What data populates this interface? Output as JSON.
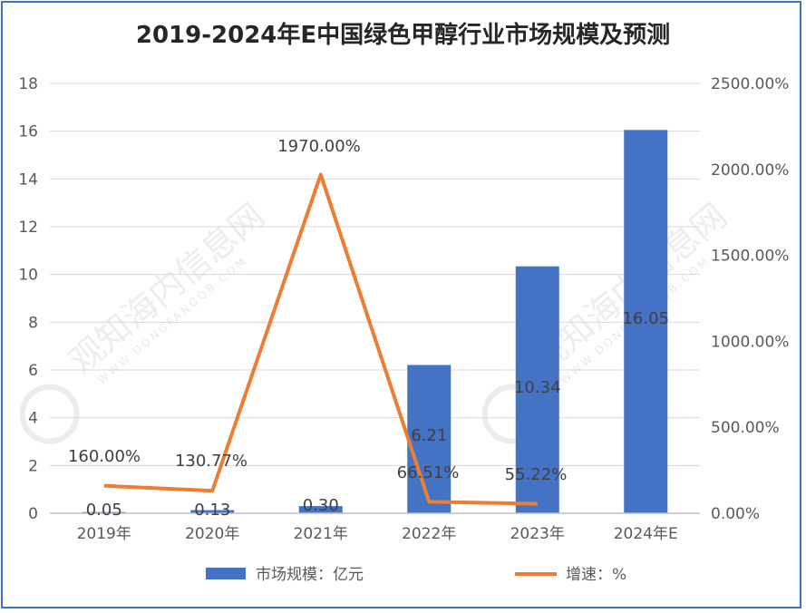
{
  "chart_data": {
    "type": "bar",
    "title": "2019-2024年E中国绿色甲醇行业市场规模及预测",
    "categories": [
      "2019年",
      "2020年",
      "2021年",
      "2022年",
      "2023年",
      "2024年E"
    ],
    "series": [
      {
        "name": "市场规模：亿元",
        "type": "bar",
        "axis": "left",
        "color": "#4472c4",
        "values": [
          0.05,
          0.13,
          0.3,
          6.21,
          10.34,
          16.05
        ],
        "labels": [
          "0.05",
          "0.13",
          "0.30",
          "6.21",
          "10.34",
          "16.05"
        ]
      },
      {
        "name": "增速：%",
        "type": "line",
        "axis": "right",
        "color": "#ed7d31",
        "values": [
          160.0,
          130.77,
          1970.0,
          66.51,
          55.22,
          null
        ],
        "labels": [
          "160.00%",
          "130.77%",
          "1970.00%",
          "66.51%",
          "55.22%",
          ""
        ]
      }
    ],
    "y_left": {
      "min": 0,
      "max": 18,
      "ticks": [
        "0",
        "2",
        "4",
        "6",
        "8",
        "10",
        "12",
        "14",
        "16",
        "18"
      ]
    },
    "y_right": {
      "min": 0,
      "max": 2500,
      "ticks": [
        "0.00%",
        "500.00%",
        "1000.00%",
        "1500.00%",
        "2000.00%",
        "2500.00%"
      ]
    },
    "grid": true,
    "legend": "bottom"
  },
  "watermark": {
    "text": "观知海内信息网",
    "sub": "WWW.DONGFANGQB.COM"
  }
}
